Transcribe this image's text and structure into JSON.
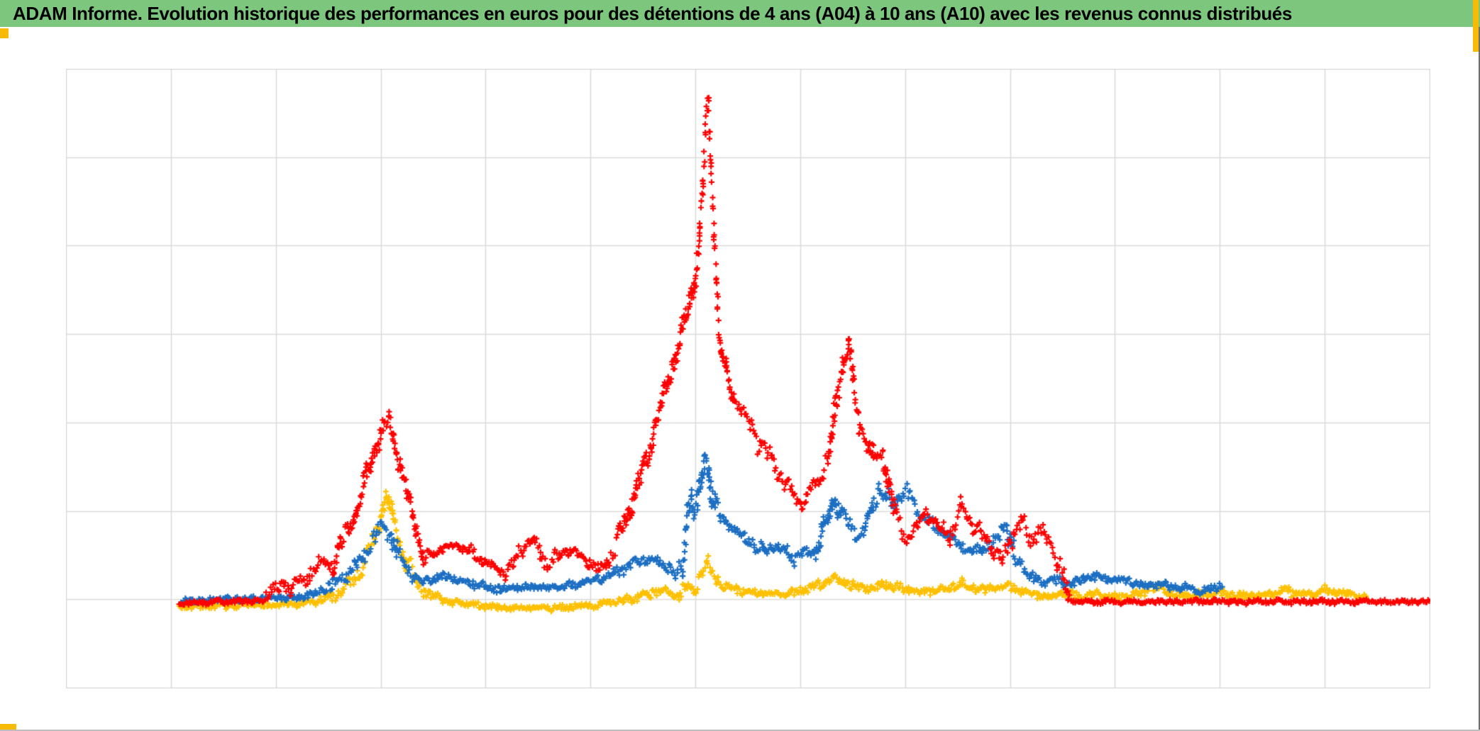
{
  "header": {
    "title": "ADAM Informe. Evolution historique des performances en euros pour des détentions de 4 ans (A04) à 10 ans (A10) avec les revenus connus distribués",
    "background_color": "#7CC67D",
    "text_color": "#000000"
  },
  "accents": {
    "gold_color": "#F8BB05"
  },
  "chart_data": {
    "type": "scatter",
    "title": "",
    "xlabel": "",
    "ylabel": "",
    "axis_tick_labels_visible": false,
    "legend": "none",
    "marker": "plus",
    "x_range_units": [
      0,
      13
    ],
    "y_range_units": [
      0,
      7
    ],
    "x_gridline_intervals": 13,
    "y_gridline_intervals": 7,
    "layout": {
      "grid_color": "#D9D9D9",
      "border_color": "#C9C9C9",
      "plot_background": "#FFFFFF"
    },
    "series": [
      {
        "name": "yellow-series",
        "color": "#FFC000",
        "seed": 7,
        "keypoints": [
          [
            1.08,
            0.92
          ],
          [
            2.28,
            0.95
          ],
          [
            2.48,
            1.01
          ],
          [
            2.63,
            1.1
          ],
          [
            2.75,
            1.25
          ],
          [
            2.85,
            1.43
          ],
          [
            2.93,
            1.67
          ],
          [
            3.01,
            1.98
          ],
          [
            3.06,
            2.16
          ],
          [
            3.11,
            1.95
          ],
          [
            3.17,
            1.67
          ],
          [
            3.25,
            1.4
          ],
          [
            3.33,
            1.23
          ],
          [
            3.41,
            1.11
          ],
          [
            3.52,
            1.03
          ],
          [
            3.64,
            0.98
          ],
          [
            3.78,
            0.95
          ],
          [
            3.91,
            0.94
          ],
          [
            4.07,
            0.92
          ],
          [
            4.24,
            0.91
          ],
          [
            4.43,
            0.91
          ],
          [
            4.62,
            0.91
          ],
          [
            4.81,
            0.92
          ],
          [
            4.98,
            0.94
          ],
          [
            5.16,
            0.96
          ],
          [
            5.32,
            0.99
          ],
          [
            5.46,
            1.03
          ],
          [
            5.56,
            1.07
          ],
          [
            5.66,
            1.1
          ],
          [
            5.76,
            1.07
          ],
          [
            5.84,
            1.04
          ],
          [
            5.92,
            1.16
          ],
          [
            5.98,
            1.12
          ],
          [
            6.05,
            1.31
          ],
          [
            6.11,
            1.39
          ],
          [
            6.15,
            1.3
          ],
          [
            6.21,
            1.21
          ],
          [
            6.29,
            1.15
          ],
          [
            6.39,
            1.11
          ],
          [
            6.5,
            1.09
          ],
          [
            6.64,
            1.07
          ],
          [
            6.77,
            1.07
          ],
          [
            6.91,
            1.08
          ],
          [
            7.03,
            1.11
          ],
          [
            7.13,
            1.15
          ],
          [
            7.23,
            1.21
          ],
          [
            7.32,
            1.24
          ],
          [
            7.42,
            1.21
          ],
          [
            7.52,
            1.16
          ],
          [
            7.62,
            1.13
          ],
          [
            7.73,
            1.15
          ],
          [
            7.82,
            1.18
          ],
          [
            7.92,
            1.14
          ],
          [
            8.03,
            1.11
          ],
          [
            8.16,
            1.09
          ],
          [
            8.3,
            1.11
          ],
          [
            8.43,
            1.14
          ],
          [
            8.54,
            1.18
          ],
          [
            8.65,
            1.15
          ],
          [
            8.76,
            1.11
          ],
          [
            8.86,
            1.14
          ],
          [
            8.96,
            1.16
          ],
          [
            9.05,
            1.12
          ],
          [
            9.15,
            1.08
          ],
          [
            9.26,
            1.06
          ],
          [
            9.36,
            1.04
          ],
          [
            9.47,
            1.07
          ],
          [
            9.58,
            1.06
          ],
          [
            9.69,
            1.04
          ],
          [
            9.81,
            1.07
          ],
          [
            9.93,
            1.05
          ],
          [
            10.05,
            1.04
          ],
          [
            10.19,
            1.07
          ],
          [
            10.31,
            1.1
          ],
          [
            10.41,
            1.15
          ],
          [
            10.51,
            1.08
          ],
          [
            10.62,
            1.06
          ],
          [
            10.74,
            1.05
          ],
          [
            10.86,
            1.07
          ],
          [
            10.99,
            1.08
          ],
          [
            11.11,
            1.06
          ],
          [
            11.23,
            1.04
          ],
          [
            11.35,
            1.06
          ],
          [
            11.47,
            1.07
          ],
          [
            11.58,
            1.09
          ],
          [
            11.64,
            1.11
          ],
          [
            11.73,
            1.07
          ],
          [
            11.82,
            1.07
          ],
          [
            11.92,
            1.06
          ],
          [
            12.01,
            1.11
          ],
          [
            12.11,
            1.09
          ],
          [
            12.22,
            1.06
          ],
          [
            12.32,
            1.04
          ],
          [
            12.4,
            1.03
          ]
        ]
      },
      {
        "name": "blue-series",
        "color": "#1B6EC2",
        "seed": 13,
        "keypoints": [
          [
            1.1,
            0.99
          ],
          [
            2.21,
            1.03
          ],
          [
            2.4,
            1.08
          ],
          [
            2.54,
            1.18
          ],
          [
            2.66,
            1.27
          ],
          [
            2.77,
            1.4
          ],
          [
            2.87,
            1.56
          ],
          [
            2.96,
            1.75
          ],
          [
            3.04,
            1.88
          ],
          [
            3.1,
            1.72
          ],
          [
            3.17,
            1.5
          ],
          [
            3.27,
            1.32
          ],
          [
            3.37,
            1.19
          ],
          [
            3.51,
            1.24
          ],
          [
            3.66,
            1.27
          ],
          [
            3.81,
            1.21
          ],
          [
            3.97,
            1.16
          ],
          [
            4.14,
            1.12
          ],
          [
            4.35,
            1.15
          ],
          [
            4.55,
            1.14
          ],
          [
            4.75,
            1.15
          ],
          [
            4.96,
            1.2
          ],
          [
            5.13,
            1.26
          ],
          [
            5.3,
            1.34
          ],
          [
            5.44,
            1.43
          ],
          [
            5.54,
            1.47
          ],
          [
            5.65,
            1.44
          ],
          [
            5.75,
            1.37
          ],
          [
            5.83,
            1.27
          ],
          [
            5.88,
            1.41
          ],
          [
            5.92,
            2.01
          ],
          [
            5.96,
            2.17
          ],
          [
            5.99,
            1.99
          ],
          [
            6.02,
            2.07
          ],
          [
            6.06,
            2.43
          ],
          [
            6.09,
            2.61
          ],
          [
            6.13,
            2.43
          ],
          [
            6.16,
            2.17
          ],
          [
            6.2,
            2.03
          ],
          [
            6.24,
            1.93
          ],
          [
            6.29,
            1.85
          ],
          [
            6.38,
            1.79
          ],
          [
            6.47,
            1.71
          ],
          [
            6.56,
            1.61
          ],
          [
            6.66,
            1.54
          ],
          [
            6.75,
            1.61
          ],
          [
            6.85,
            1.55
          ],
          [
            6.94,
            1.47
          ],
          [
            7.03,
            1.56
          ],
          [
            7.13,
            1.52
          ],
          [
            7.21,
            1.77
          ],
          [
            7.28,
            1.99
          ],
          [
            7.33,
            2.16
          ],
          [
            7.39,
            1.96
          ],
          [
            7.46,
            1.85
          ],
          [
            7.54,
            1.75
          ],
          [
            7.62,
            1.79
          ],
          [
            7.7,
            2.12
          ],
          [
            7.75,
            2.25
          ],
          [
            7.81,
            2.17
          ],
          [
            7.88,
            2.07
          ],
          [
            7.94,
            2.17
          ],
          [
            8.01,
            2.22
          ],
          [
            8.09,
            2.06
          ],
          [
            8.17,
            1.95
          ],
          [
            8.27,
            1.83
          ],
          [
            8.36,
            1.75
          ],
          [
            8.46,
            1.67
          ],
          [
            8.55,
            1.61
          ],
          [
            8.65,
            1.56
          ],
          [
            8.74,
            1.59
          ],
          [
            8.84,
            1.64
          ],
          [
            8.92,
            1.8
          ],
          [
            8.97,
            1.83
          ],
          [
            9.04,
            1.45
          ],
          [
            9.13,
            1.35
          ],
          [
            9.23,
            1.25
          ],
          [
            9.32,
            1.19
          ],
          [
            9.42,
            1.23
          ],
          [
            9.51,
            1.18
          ],
          [
            9.62,
            1.21
          ],
          [
            9.73,
            1.24
          ],
          [
            9.84,
            1.27
          ],
          [
            9.95,
            1.23
          ],
          [
            10.07,
            1.23
          ],
          [
            10.19,
            1.19
          ],
          [
            10.32,
            1.16
          ],
          [
            10.46,
            1.17
          ],
          [
            10.58,
            1.13
          ],
          [
            10.7,
            1.15
          ],
          [
            10.82,
            1.11
          ],
          [
            10.93,
            1.13
          ],
          [
            10.99,
            1.15
          ],
          [
            11.02,
            1.11
          ]
        ]
      },
      {
        "name": "red-series",
        "color": "#FE0000",
        "seed": 29,
        "keypoints": [
          [
            1.08,
            0.97
          ],
          [
            1.87,
            0.99
          ],
          [
            1.96,
            1.16
          ],
          [
            2.02,
            1.08
          ],
          [
            2.1,
            1.19
          ],
          [
            2.14,
            1.11
          ],
          [
            2.2,
            1.23
          ],
          [
            2.27,
            1.18
          ],
          [
            2.32,
            1.31
          ],
          [
            2.4,
            1.37
          ],
          [
            2.47,
            1.47
          ],
          [
            2.54,
            1.37
          ],
          [
            2.62,
            1.63
          ],
          [
            2.7,
            1.81
          ],
          [
            2.77,
            2.03
          ],
          [
            2.83,
            2.27
          ],
          [
            2.9,
            2.51
          ],
          [
            2.97,
            2.78
          ],
          [
            3.03,
            2.96
          ],
          [
            3.08,
            3.08
          ],
          [
            3.12,
            2.83
          ],
          [
            3.18,
            2.53
          ],
          [
            3.25,
            2.19
          ],
          [
            3.33,
            1.87
          ],
          [
            3.41,
            1.43
          ],
          [
            3.51,
            1.53
          ],
          [
            3.63,
            1.61
          ],
          [
            3.75,
            1.61
          ],
          [
            3.85,
            1.55
          ],
          [
            3.96,
            1.45
          ],
          [
            4.07,
            1.37
          ],
          [
            4.17,
            1.3
          ],
          [
            4.27,
            1.41
          ],
          [
            4.37,
            1.63
          ],
          [
            4.46,
            1.67
          ],
          [
            4.52,
            1.53
          ],
          [
            4.59,
            1.41
          ],
          [
            4.7,
            1.51
          ],
          [
            4.79,
            1.56
          ],
          [
            4.88,
            1.53
          ],
          [
            4.97,
            1.45
          ],
          [
            5.07,
            1.32
          ],
          [
            5.17,
            1.43
          ],
          [
            5.27,
            1.69
          ],
          [
            5.35,
            1.96
          ],
          [
            5.44,
            2.27
          ],
          [
            5.52,
            2.53
          ],
          [
            5.6,
            2.89
          ],
          [
            5.68,
            3.21
          ],
          [
            5.75,
            3.53
          ],
          [
            5.81,
            3.77
          ],
          [
            5.88,
            4.08
          ],
          [
            5.94,
            4.33
          ],
          [
            5.99,
            4.61
          ],
          [
            6.04,
            5.13
          ],
          [
            6.07,
            5.74
          ],
          [
            6.1,
            6.46
          ],
          [
            6.12,
            6.56
          ],
          [
            6.15,
            5.86
          ],
          [
            6.18,
            5.05
          ],
          [
            6.21,
            4.33
          ],
          [
            6.24,
            3.84
          ],
          [
            6.29,
            3.57
          ],
          [
            6.35,
            3.35
          ],
          [
            6.42,
            3.16
          ],
          [
            6.52,
            2.97
          ],
          [
            6.62,
            2.75
          ],
          [
            6.73,
            2.59
          ],
          [
            6.83,
            2.35
          ],
          [
            6.92,
            2.19
          ],
          [
            7.01,
            2.09
          ],
          [
            7.1,
            2.24
          ],
          [
            7.19,
            2.43
          ],
          [
            7.27,
            2.61
          ],
          [
            7.34,
            3.2
          ],
          [
            7.4,
            3.65
          ],
          [
            7.46,
            3.89
          ],
          [
            7.5,
            3.45
          ],
          [
            7.56,
            2.99
          ],
          [
            7.63,
            2.83
          ],
          [
            7.69,
            2.61
          ],
          [
            7.78,
            2.64
          ],
          [
            7.84,
            2.32
          ],
          [
            7.91,
            1.96
          ],
          [
            8.01,
            1.71
          ],
          [
            8.11,
            1.82
          ],
          [
            8.21,
            1.99
          ],
          [
            8.31,
            1.85
          ],
          [
            8.42,
            1.72
          ],
          [
            8.53,
            2.03
          ],
          [
            8.62,
            1.9
          ],
          [
            8.72,
            1.71
          ],
          [
            8.82,
            1.58
          ],
          [
            8.92,
            1.45
          ],
          [
            9.03,
            1.75
          ],
          [
            9.11,
            1.88
          ],
          [
            9.19,
            1.67
          ],
          [
            9.27,
            1.8
          ],
          [
            9.35,
            1.69
          ],
          [
            9.44,
            1.47
          ],
          [
            9.51,
            1.26
          ],
          [
            9.55,
            1.0
          ],
          [
            9.58,
            0.98
          ],
          [
            12.99,
            0.98
          ]
        ]
      }
    ]
  }
}
